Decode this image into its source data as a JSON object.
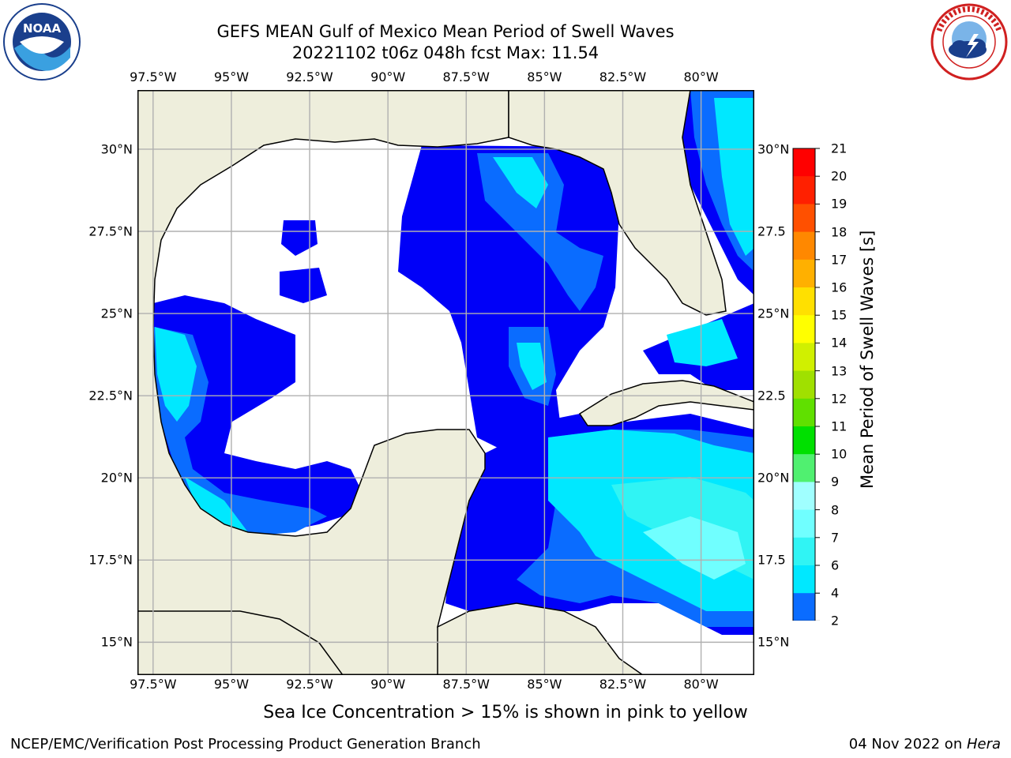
{
  "header": {
    "title_line1": "GEFS MEAN Gulf of Mexico Mean Period of Swell Waves",
    "title_line2": "20221102 t06z 048h fcst   Max: 11.54"
  },
  "logos": {
    "noaa_text": "NOAA",
    "noaa_ring": "NATIONAL OCEANIC AND ATMOSPHERIC ADMINISTRATION · U.S. DEPARTMENT OF COMMERCE",
    "nws_ring": "NATIONAL WEATHER SERVICE"
  },
  "map": {
    "lon_ticks": [
      "97.5°W",
      "95°W",
      "92.5°W",
      "90°W",
      "87.5°W",
      "85°W",
      "82.5°W",
      "80°W"
    ],
    "lat_ticks_left": [
      "30°N",
      "27.5°N",
      "25°N",
      "22.5°N",
      "20°N",
      "17.5°N",
      "15°N"
    ],
    "lat_ticks_right": [
      "30°N",
      "27.5",
      "25°N",
      "22.5",
      "20°N",
      "17.5",
      "15°N"
    ],
    "lon_range": [
      -98,
      -78.3
    ],
    "lat_range": [
      14.0,
      31.8
    ],
    "land_color": "#eeeedc",
    "ocean_missing_color": "#ffffff",
    "grid_color": "#b0b0b0"
  },
  "colorbar": {
    "label": "Mean Period of Swell Waves [s]",
    "ticks": [
      "21",
      "20",
      "19",
      "18",
      "17",
      "16",
      "15",
      "14",
      "13",
      "12",
      "11",
      "10",
      "9",
      "8",
      "7",
      "6",
      "4",
      "2"
    ],
    "levels": [
      2,
      4,
      6,
      7,
      8,
      9,
      10,
      11,
      12,
      13,
      14,
      15,
      16,
      17,
      18,
      19,
      20,
      21
    ],
    "colors": [
      "#0000f8",
      "#0a6cff",
      "#00e8ff",
      "#30f4f4",
      "#70ffff",
      "#a0ffff",
      "#50f070",
      "#00e000",
      "#60e000",
      "#a0e000",
      "#d0f000",
      "#ffff00",
      "#ffe000",
      "#ffb000",
      "#ff8800",
      "#ff5000",
      "#ff2000",
      "#ff0000"
    ]
  },
  "footer": {
    "note": "Sea Ice Concentration > 15% is shown in pink to yellow",
    "left": "NCEP/EMC/Verification Post Processing Product Generation Branch",
    "right_date": "04 Nov 2022 on ",
    "right_host": "Hera"
  }
}
